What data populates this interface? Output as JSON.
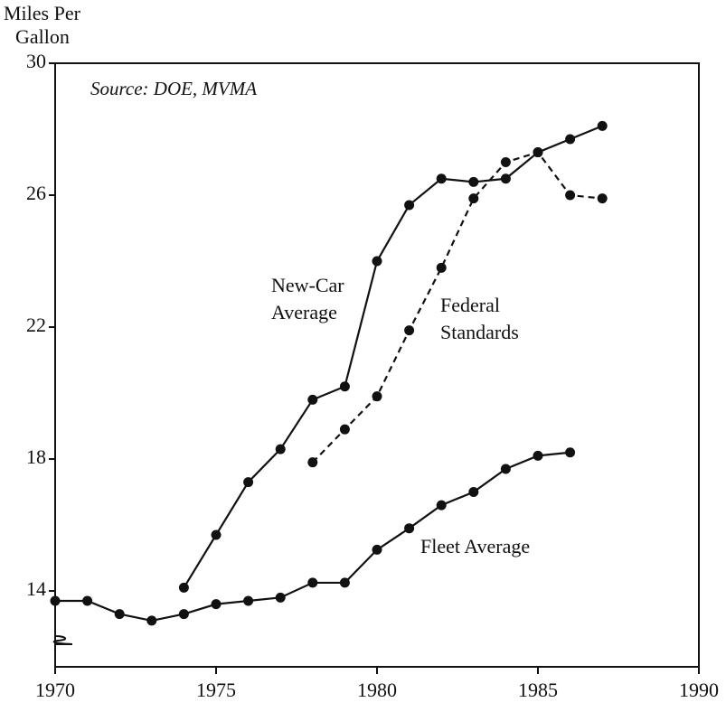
{
  "chart_data": {
    "type": "line",
    "ylabel": [
      "Miles Per",
      "Gallon"
    ],
    "annotation": "Source: DOE, MVMA",
    "x": [
      1970,
      1971,
      1972,
      1973,
      1974,
      1975,
      1976,
      1977,
      1978,
      1979,
      1980,
      1981,
      1982,
      1983,
      1984,
      1985,
      1986,
      1987
    ],
    "series": [
      {
        "name": "Fleet Average",
        "color": "#111111",
        "dash": false,
        "values": [
          13.7,
          13.7,
          13.3,
          13.1,
          13.3,
          13.6,
          13.7,
          13.8,
          14.25,
          14.25,
          15.25,
          15.9,
          16.6,
          17.0,
          17.7,
          18.1,
          18.2,
          null
        ]
      },
      {
        "name": "New-Car Average",
        "color": "#111111",
        "dash": false,
        "values": [
          null,
          null,
          null,
          null,
          14.1,
          15.7,
          17.3,
          18.3,
          19.8,
          20.2,
          24.0,
          25.7,
          26.5,
          26.4,
          26.5,
          27.3,
          27.7,
          28.1
        ]
      },
      {
        "name": "Federal Standards",
        "color": "#111111",
        "dash": true,
        "values": [
          null,
          null,
          null,
          null,
          null,
          null,
          null,
          null,
          17.9,
          18.9,
          19.9,
          21.9,
          23.8,
          25.9,
          27.0,
          27.3,
          26.0,
          25.9
        ]
      }
    ],
    "xlim": [
      1970,
      1990
    ],
    "xticks": [
      1970,
      1975,
      1980,
      1985,
      1990
    ],
    "ylim": [
      11.7,
      30
    ],
    "yticks": [
      14,
      18,
      22,
      26,
      30
    ]
  }
}
